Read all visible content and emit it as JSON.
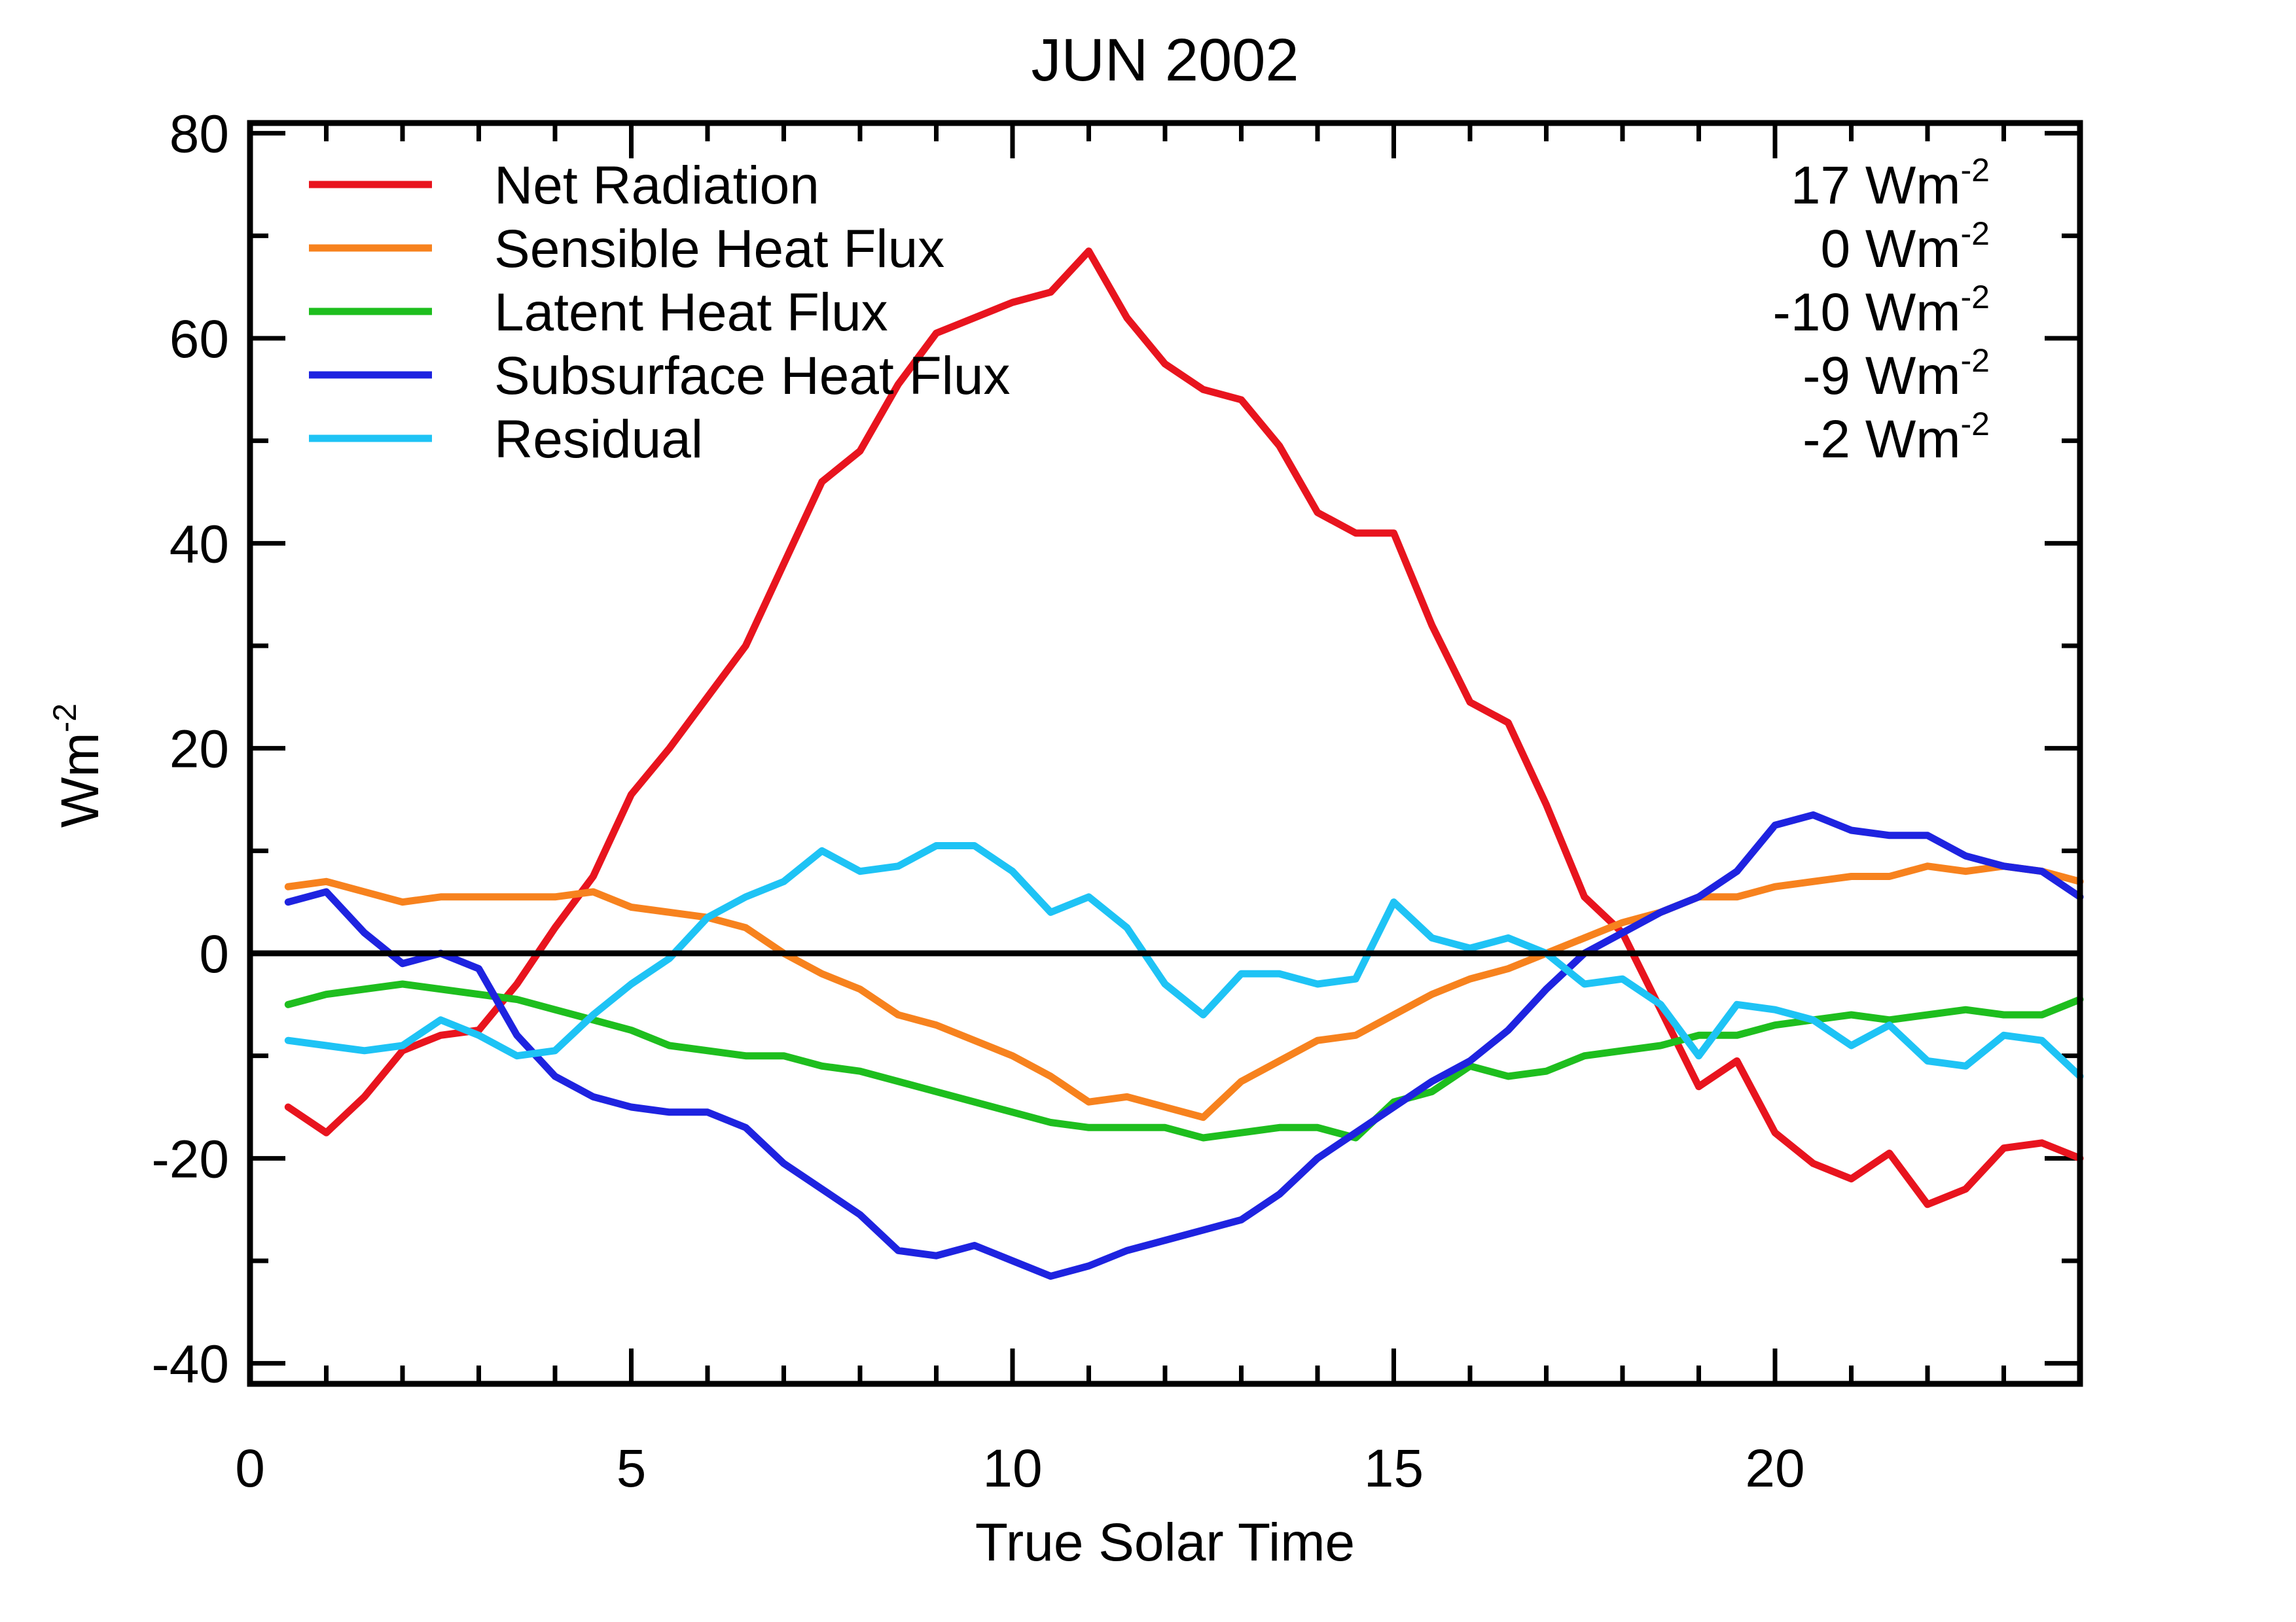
{
  "chart_data": {
    "type": "line",
    "title": "JUN 2002",
    "xlabel": "True Solar Time",
    "ylabel": {
      "base": "Wm",
      "sup": "-2"
    },
    "xlim": [
      0,
      24
    ],
    "ylim": [
      -42,
      81
    ],
    "xticks": [
      0,
      5,
      10,
      15,
      20
    ],
    "yticks": [
      -40,
      -20,
      0,
      20,
      40,
      60,
      80
    ],
    "zero_line": true,
    "grid": false,
    "legend_position": "top-left",
    "x": [
      0.5,
      1.0,
      1.5,
      2.0,
      2.5,
      3.0,
      3.5,
      4.0,
      4.5,
      5.0,
      5.5,
      6.0,
      6.5,
      7.0,
      7.5,
      8.0,
      8.5,
      9.0,
      9.5,
      10.0,
      10.5,
      11.0,
      11.5,
      12.0,
      12.5,
      13.0,
      13.5,
      14.0,
      14.5,
      15.0,
      15.5,
      16.0,
      16.5,
      17.0,
      17.5,
      18.0,
      18.5,
      19.0,
      19.5,
      20.0,
      20.5,
      21.0,
      21.5,
      22.0,
      22.5,
      23.0,
      23.5,
      24.0
    ],
    "series": [
      {
        "name": "Net Radiation",
        "mean_label": "17 Wm",
        "unit_sup": "-2",
        "color": "#e8141e",
        "values": [
          -15,
          -17.5,
          -14,
          -9.5,
          -8,
          -7.5,
          -3,
          2.5,
          7.5,
          15.5,
          20,
          25,
          30,
          38,
          46,
          49,
          55.5,
          60.5,
          62,
          63.5,
          64.5,
          68.5,
          62,
          57.5,
          55,
          54,
          49.5,
          43,
          41,
          41,
          32,
          24.5,
          22.5,
          14.5,
          5.5,
          2,
          -5.5,
          -13,
          -10.5,
          -17.5,
          -20.5,
          -22,
          -19.5,
          -24.5,
          -23,
          -19,
          -18.5,
          -20
        ]
      },
      {
        "name": "Sensible Heat Flux",
        "mean_label": "0 Wm",
        "unit_sup": "-2",
        "color": "#f7821e",
        "values": [
          6.5,
          7,
          6,
          5,
          5.5,
          5.5,
          5.5,
          5.5,
          6,
          4.5,
          4,
          3.5,
          2.5,
          0,
          -2,
          -3.5,
          -6,
          -7,
          -8.5,
          -10,
          -12,
          -14.5,
          -14,
          -15,
          -16,
          -12.5,
          -10.5,
          -8.5,
          -8,
          -6,
          -4,
          -2.5,
          -1.5,
          0,
          1.5,
          3,
          4,
          5.5,
          5.5,
          6.5,
          7,
          7.5,
          7.5,
          8.5,
          8,
          8.5,
          8,
          7
        ]
      },
      {
        "name": "Latent Heat Flux",
        "mean_label": "-10 Wm",
        "unit_sup": "-2",
        "color": "#1ebe1e",
        "values": [
          -5,
          -4,
          -3.5,
          -3,
          -3.5,
          -4,
          -4.5,
          -5.5,
          -6.5,
          -7.5,
          -9,
          -9.5,
          -10,
          -10,
          -11,
          -11.5,
          -12.5,
          -13.5,
          -14.5,
          -15.5,
          -16.5,
          -17,
          -17,
          -17,
          -18,
          -17.5,
          -17,
          -17,
          -18,
          -14.5,
          -13.5,
          -11,
          -12,
          -11.5,
          -10,
          -9.5,
          -9,
          -8,
          -8,
          -7,
          -6.5,
          -6,
          -6.5,
          -6,
          -5.5,
          -6,
          -6,
          -4.5
        ]
      },
      {
        "name": "Subsurface Heat Flux",
        "mean_label": "-9 Wm",
        "unit_sup": "-2",
        "color": "#1e23e0",
        "values": [
          5,
          6,
          2,
          -1,
          0,
          -1.5,
          -8,
          -12,
          -14,
          -15,
          -15.5,
          -15.5,
          -17,
          -20.5,
          -23,
          -25.5,
          -29,
          -29.5,
          -28.5,
          -30,
          -31.5,
          -30.5,
          -29,
          -28,
          -27,
          -26,
          -23.5,
          -20,
          -17.5,
          -15,
          -12.5,
          -10.5,
          -7.5,
          -3.5,
          0,
          2,
          4,
          5.5,
          8,
          12.5,
          13.5,
          12,
          11.5,
          11.5,
          9.5,
          8.5,
          8,
          5.5
        ]
      },
      {
        "name": "Residual",
        "mean_label": "-2 Wm",
        "unit_sup": "-2",
        "color": "#1ec3f5",
        "values": [
          -8.5,
          -9,
          -9.5,
          -9,
          -6.5,
          -8,
          -10,
          -9.5,
          -6,
          -3,
          -0.5,
          3.5,
          5.5,
          7,
          10,
          8,
          8.5,
          10.5,
          10.5,
          8,
          4,
          5.5,
          2.5,
          -3,
          -6,
          -2,
          -2,
          -3,
          -2.5,
          5,
          1.5,
          0.5,
          1.5,
          0,
          -3,
          -2.5,
          -5,
          -10,
          -5,
          -5.5,
          -6.5,
          -9,
          -7,
          -10.5,
          -11,
          -8,
          -8.5,
          -12
        ]
      }
    ]
  }
}
